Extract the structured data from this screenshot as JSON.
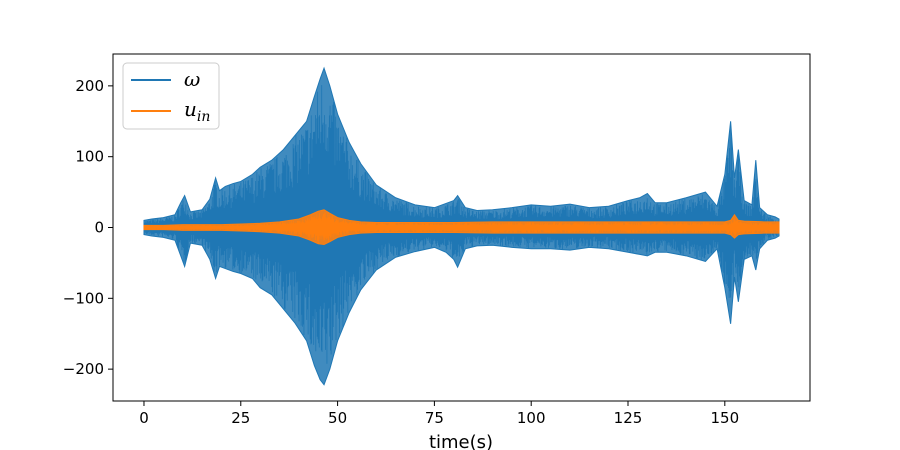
{
  "chart_data": {
    "type": "line",
    "title": "",
    "xlabel": "time(s)",
    "ylabel": "",
    "xlim": [
      -8,
      172
    ],
    "ylim": [
      -245,
      245
    ],
    "xticks": [
      0,
      25,
      50,
      75,
      100,
      125,
      150
    ],
    "yticks": [
      200,
      100,
      0,
      -100,
      -200
    ],
    "xtick_labels": [
      "0",
      "25",
      "50",
      "75",
      "100",
      "125",
      "150"
    ],
    "ytick_labels": [
      "200",
      "100",
      "0",
      "−100",
      "−200"
    ],
    "grid": false,
    "legend": "top-left",
    "series": [
      {
        "name": "ω",
        "legend_main": "ω",
        "legend_sub": "",
        "color": "#1f77b4",
        "envelope": {
          "t": [
            0,
            2,
            5,
            8,
            9.5,
            10.5,
            12,
            15,
            17,
            18.5,
            19.5,
            21,
            23,
            25,
            28,
            30,
            33,
            36,
            39,
            42,
            44,
            45.5,
            46.5,
            48,
            50,
            53,
            56,
            60,
            65,
            70,
            75,
            78,
            80,
            81,
            83,
            86,
            90,
            95,
            100,
            105,
            110,
            115,
            120,
            125,
            128,
            130,
            132,
            135,
            140,
            145,
            148,
            150,
            151.5,
            152.5,
            153.5,
            155,
            157,
            158,
            159,
            161,
            163,
            164
          ],
          "max": [
            10,
            12,
            14,
            18,
            35,
            45,
            22,
            25,
            40,
            70,
            52,
            58,
            62,
            65,
            75,
            85,
            95,
            110,
            130,
            150,
            185,
            210,
            225,
            200,
            160,
            120,
            90,
            60,
            42,
            32,
            28,
            34,
            38,
            45,
            28,
            24,
            25,
            28,
            32,
            30,
            33,
            28,
            30,
            38,
            42,
            48,
            35,
            35,
            42,
            50,
            30,
            75,
            150,
            70,
            110,
            38,
            32,
            95,
            28,
            18,
            15,
            12
          ],
          "min": [
            -10,
            -12,
            -14,
            -18,
            -40,
            -55,
            -22,
            -25,
            -45,
            -72,
            -55,
            -58,
            -62,
            -65,
            -72,
            -85,
            -95,
            -115,
            -135,
            -160,
            -195,
            -215,
            -222,
            -200,
            -160,
            -120,
            -88,
            -60,
            -42,
            -34,
            -28,
            -35,
            -45,
            -56,
            -30,
            -26,
            -25,
            -28,
            -30,
            -30,
            -32,
            -28,
            -30,
            -35,
            -38,
            -40,
            -35,
            -35,
            -40,
            -48,
            -30,
            -85,
            -136,
            -70,
            -105,
            -45,
            -40,
            -60,
            -30,
            -18,
            -15,
            -12
          ]
        }
      },
      {
        "name": "u_in",
        "legend_main": "u",
        "legend_sub": "in",
        "color": "#ff7f0e",
        "envelope": {
          "t": [
            0,
            5,
            10,
            15,
            20,
            25,
            30,
            35,
            40,
            43,
            45,
            46.5,
            48,
            50,
            53,
            56,
            60,
            70,
            80,
            90,
            100,
            110,
            120,
            130,
            140,
            150,
            151.5,
            152.5,
            153.5,
            155,
            160,
            164
          ],
          "max": [
            3,
            3,
            4,
            4,
            4,
            5,
            6,
            8,
            12,
            18,
            23,
            25,
            20,
            14,
            10,
            8,
            7,
            7,
            7,
            8,
            8,
            8,
            8,
            8,
            8,
            8,
            10,
            18,
            10,
            9,
            8,
            8
          ],
          "min": [
            -3,
            -3,
            -4,
            -4,
            -4,
            -5,
            -6,
            -8,
            -12,
            -18,
            -23,
            -24,
            -20,
            -14,
            -10,
            -8,
            -7,
            -7,
            -7,
            -8,
            -8,
            -8,
            -8,
            -8,
            -8,
            -8,
            -10,
            -15,
            -10,
            -9,
            -8,
            -8
          ]
        }
      }
    ]
  }
}
